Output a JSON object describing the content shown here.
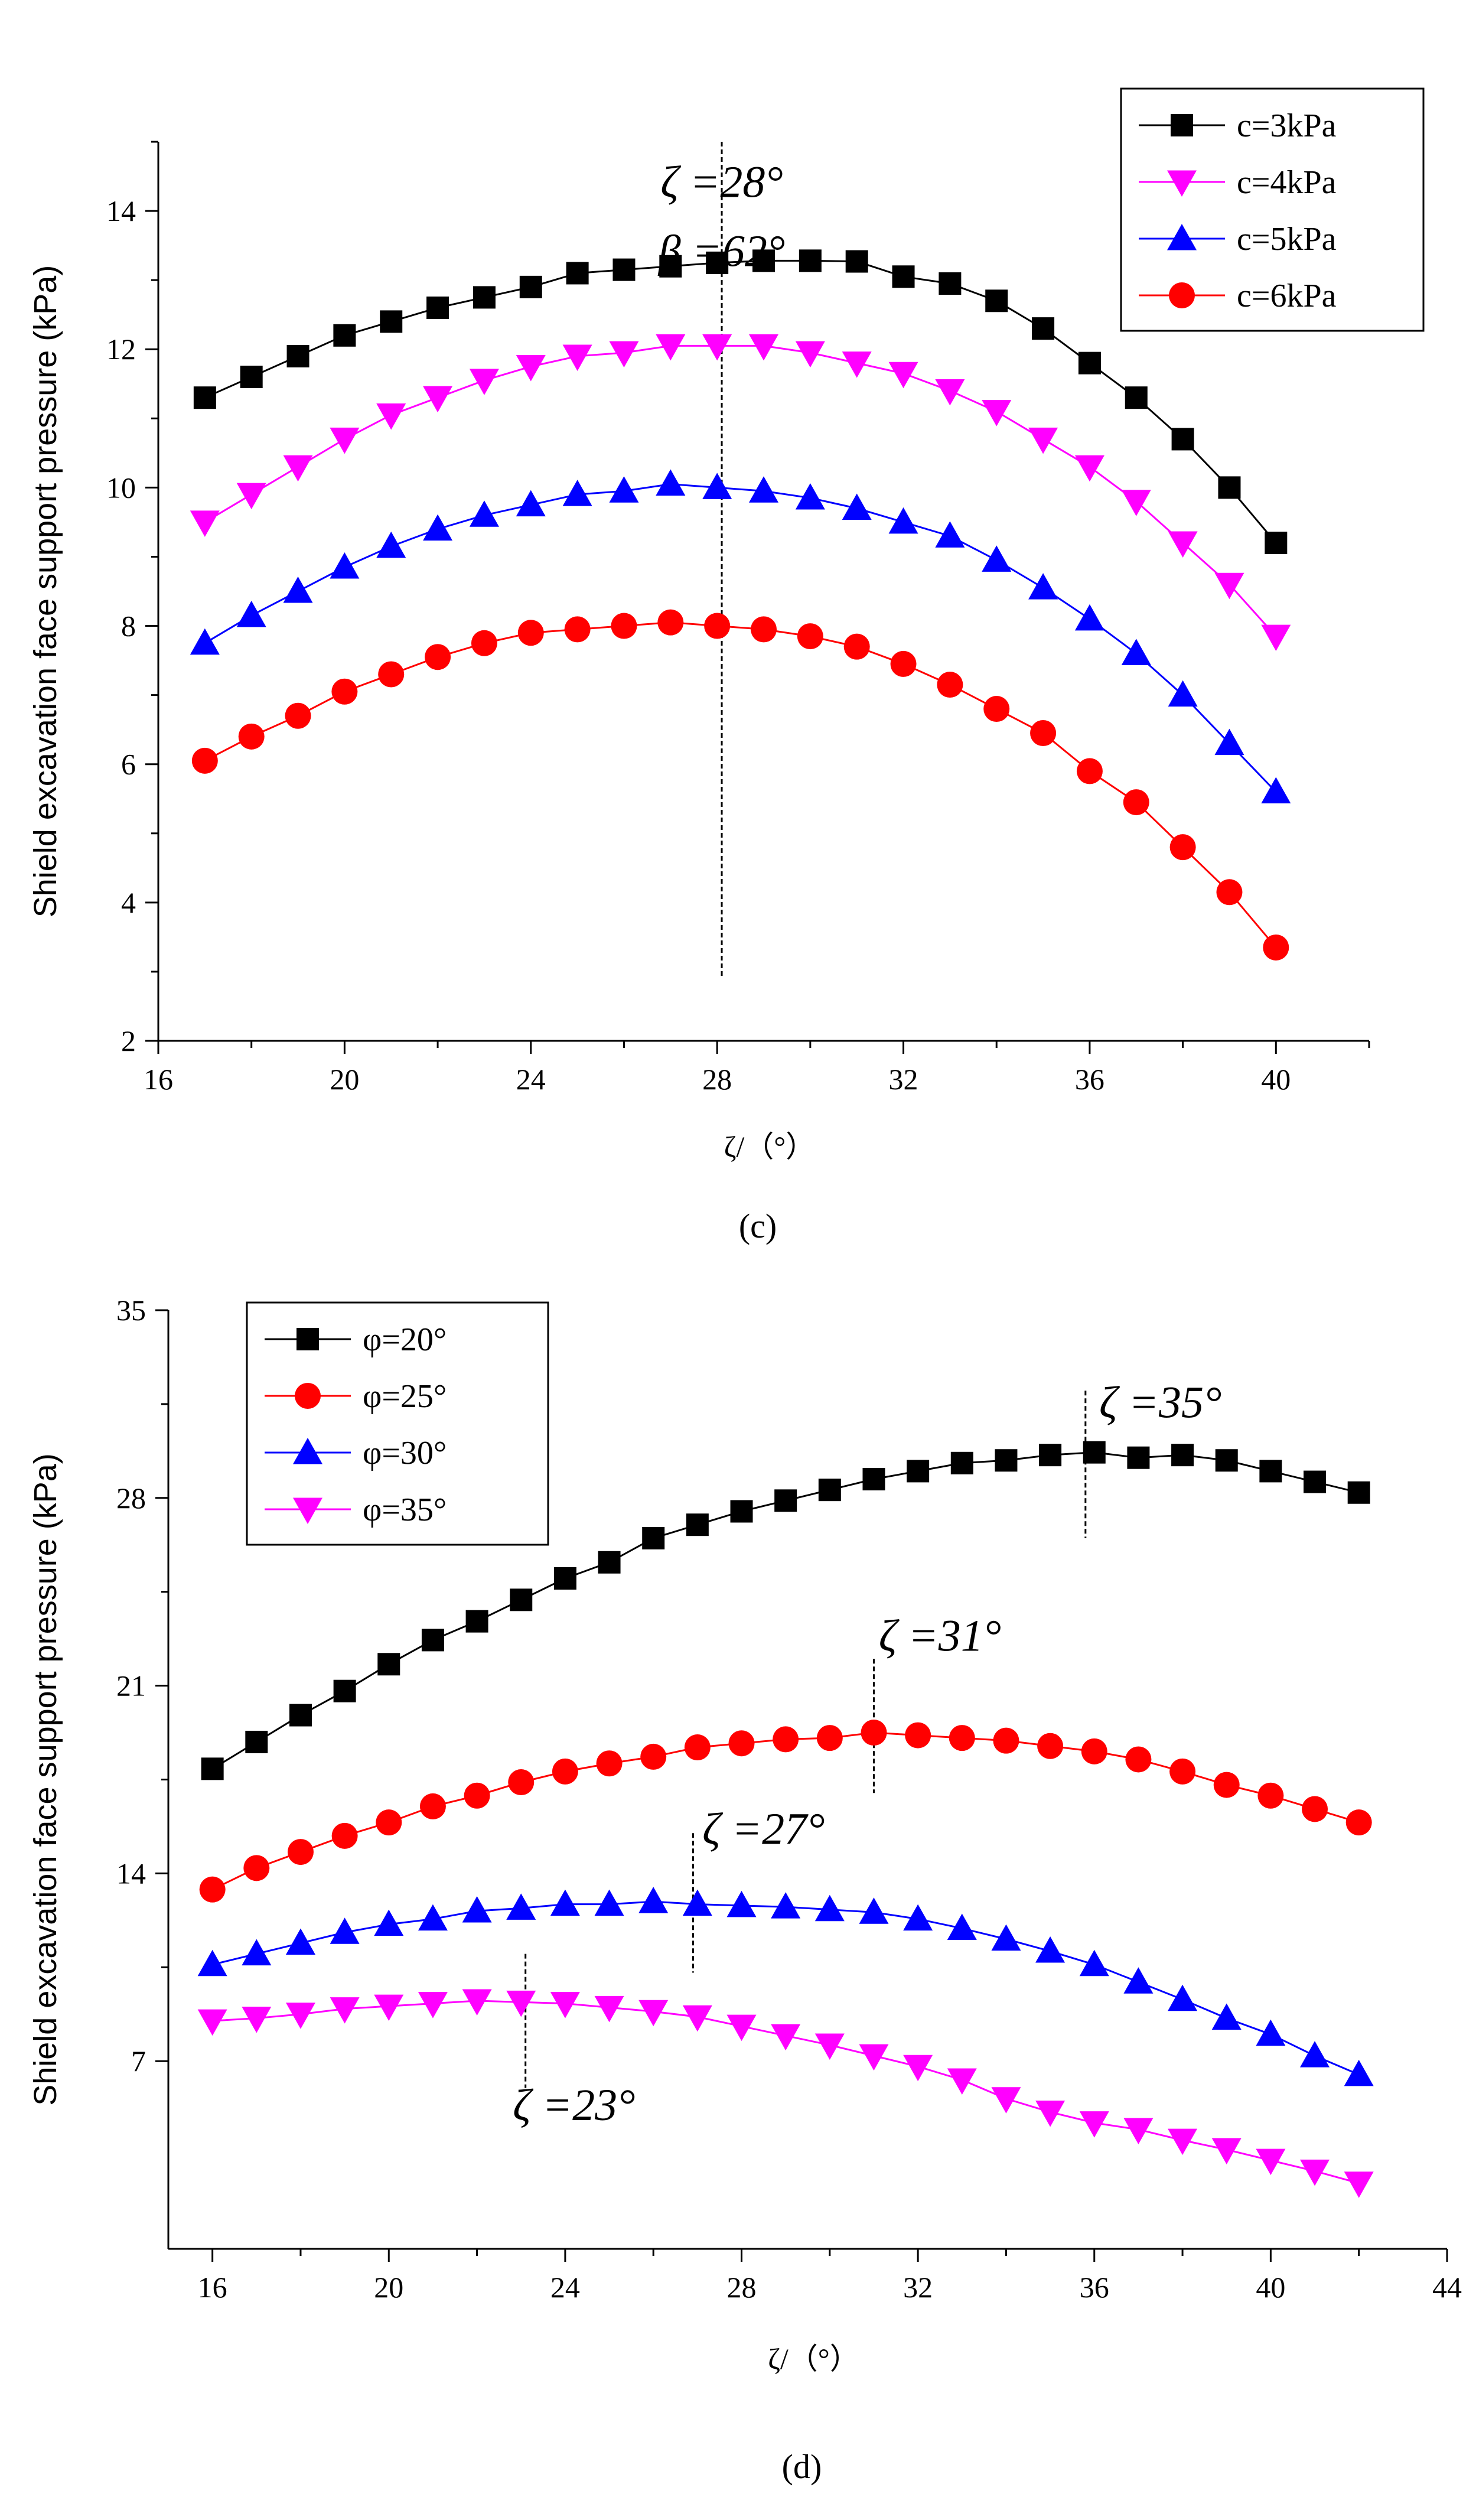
{
  "chart_data": [
    {
      "type": "line",
      "panel_label": "(c)",
      "xlabel": "ζ/（°）",
      "ylabel": "Shield excavation face support pressure (kPa)",
      "xlim": [
        16,
        42
      ],
      "ylim": [
        2,
        15
      ],
      "xticks": [
        16,
        20,
        24,
        28,
        32,
        36,
        40
      ],
      "yticks": [
        2,
        4,
        6,
        8,
        10,
        12,
        14
      ],
      "legend_position": "top-right",
      "annotations": [
        {
          "text": "ζ =28°",
          "x": 28.1,
          "y": 14.2
        },
        {
          "text": "β =62°",
          "x": 28.1,
          "y": 13.2
        }
      ],
      "vlines": [
        {
          "x": 28.1,
          "y0": 2.9,
          "y1": 15
        }
      ],
      "x": [
        17,
        18,
        19,
        20,
        21,
        22,
        23,
        24,
        25,
        26,
        27,
        28,
        29,
        30,
        31,
        32,
        33,
        34,
        35,
        36,
        37,
        38,
        39,
        40
      ],
      "series": [
        {
          "name": "c=3kPa",
          "color": "#000000",
          "marker": "square",
          "values": [
            11.3,
            11.6,
            11.9,
            12.2,
            12.4,
            12.6,
            12.75,
            12.9,
            13.1,
            13.15,
            13.2,
            13.25,
            13.28,
            13.28,
            13.27,
            13.05,
            12.95,
            12.7,
            12.3,
            11.8,
            11.3,
            10.7,
            10.0,
            9.2
          ]
        },
        {
          "name": "c=4kPa",
          "color": "#ff00ff",
          "marker": "triangle-down",
          "values": [
            9.5,
            9.9,
            10.3,
            10.7,
            11.05,
            11.3,
            11.55,
            11.75,
            11.9,
            11.95,
            12.05,
            12.05,
            12.05,
            11.95,
            11.8,
            11.65,
            11.4,
            11.1,
            10.7,
            10.3,
            9.8,
            9.2,
            8.6,
            7.85
          ]
        },
        {
          "name": "c=5kPa",
          "color": "#0000ff",
          "marker": "triangle-up",
          "values": [
            7.75,
            8.15,
            8.5,
            8.85,
            9.15,
            9.4,
            9.6,
            9.75,
            9.9,
            9.95,
            10.05,
            10.0,
            9.95,
            9.85,
            9.7,
            9.5,
            9.3,
            8.95,
            8.55,
            8.1,
            7.6,
            7.0,
            6.3,
            5.6
          ]
        },
        {
          "name": "c=6kPa",
          "color": "#ff0000",
          "marker": "circle",
          "values": [
            6.05,
            6.4,
            6.7,
            7.05,
            7.3,
            7.55,
            7.75,
            7.9,
            7.95,
            8.0,
            8.05,
            8.0,
            7.95,
            7.85,
            7.7,
            7.45,
            7.15,
            6.8,
            6.45,
            5.9,
            5.45,
            4.8,
            4.15,
            3.35
          ]
        }
      ]
    },
    {
      "type": "line",
      "panel_label": "(d)",
      "xlabel": "ζ/（°）",
      "ylabel": "Shield excavation face support pressure (kPa)",
      "xlim": [
        15,
        44
      ],
      "ylim": [
        0,
        35
      ],
      "xticks": [
        16,
        20,
        24,
        28,
        32,
        36,
        40,
        44
      ],
      "yticks": [
        7,
        14,
        21,
        28,
        35
      ],
      "legend_position": "top-left",
      "annotations": [
        {
          "text": "ζ =35°",
          "x": 37.5,
          "y": 31.0
        },
        {
          "text": "ζ =31°",
          "x": 32.5,
          "y": 22.3
        },
        {
          "text": "ζ =27°",
          "x": 28.5,
          "y": 15.1
        },
        {
          "text": "ζ =23°",
          "x": 24.2,
          "y": 4.8
        }
      ],
      "vlines": [
        {
          "x": 35.8,
          "y0": 26.5,
          "y1": 32.0
        },
        {
          "x": 31.0,
          "y0": 17.0,
          "y1": 22.0
        },
        {
          "x": 26.9,
          "y0": 10.3,
          "y1": 15.5
        },
        {
          "x": 23.1,
          "y0": 6.0,
          "y1": 11.0
        }
      ],
      "x": [
        16,
        17,
        18,
        19,
        20,
        21,
        22,
        23,
        24,
        25,
        26,
        27,
        28,
        29,
        30,
        31,
        32,
        33,
        34,
        35,
        36,
        37,
        38,
        39,
        40,
        41,
        42
      ],
      "series": [
        {
          "name": "φ=20°",
          "color": "#000000",
          "marker": "square",
          "values": [
            17.9,
            18.9,
            19.9,
            20.8,
            21.8,
            22.7,
            23.4,
            24.2,
            25.0,
            25.6,
            26.5,
            27.0,
            27.5,
            27.9,
            28.3,
            28.7,
            29.0,
            29.3,
            29.4,
            29.6,
            29.7,
            29.5,
            29.6,
            29.4,
            29.0,
            28.6,
            28.2
          ]
        },
        {
          "name": "φ=25°",
          "color": "#ff0000",
          "marker": "circle",
          "values": [
            13.4,
            14.2,
            14.8,
            15.4,
            15.9,
            16.5,
            16.9,
            17.4,
            17.8,
            18.1,
            18.35,
            18.7,
            18.85,
            19.0,
            19.05,
            19.25,
            19.15,
            19.05,
            18.95,
            18.75,
            18.55,
            18.25,
            17.8,
            17.3,
            16.9,
            16.4,
            15.9
          ]
        },
        {
          "name": "φ=30°",
          "color": "#0000ff",
          "marker": "triangle-up",
          "values": [
            10.6,
            11.0,
            11.4,
            11.8,
            12.1,
            12.3,
            12.6,
            12.7,
            12.85,
            12.85,
            12.95,
            12.85,
            12.8,
            12.75,
            12.65,
            12.55,
            12.3,
            11.95,
            11.55,
            11.1,
            10.6,
            9.95,
            9.3,
            8.6,
            8.0,
            7.2,
            6.5
          ]
        },
        {
          "name": "φ=35°",
          "color": "#ff00ff",
          "marker": "triangle-down",
          "values": [
            8.5,
            8.6,
            8.75,
            8.95,
            9.05,
            9.15,
            9.25,
            9.2,
            9.15,
            9.0,
            8.85,
            8.65,
            8.3,
            7.95,
            7.6,
            7.2,
            6.8,
            6.3,
            5.6,
            5.1,
            4.7,
            4.45,
            4.05,
            3.7,
            3.3,
            2.9,
            2.45
          ]
        }
      ]
    }
  ]
}
